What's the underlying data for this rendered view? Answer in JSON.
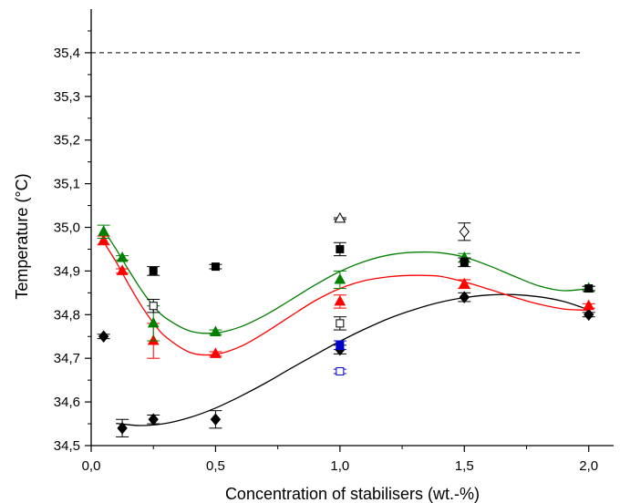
{
  "chart_data": {
    "type": "scatter",
    "xlabel": "Concentration of stabilisers (wt.-%)",
    "ylabel": "Temperature (°C)",
    "xlim": [
      0.0,
      2.1
    ],
    "ylim": [
      34.5,
      35.5
    ],
    "x_ticks": [
      "0,0",
      "0,5",
      "1,0",
      "1,5",
      "2,0"
    ],
    "y_ticks": [
      "34,5",
      "34,6",
      "34,7",
      "34,8",
      "34,9",
      "35,0",
      "35,1",
      "35,2",
      "35,3",
      "35,4"
    ],
    "grid": false,
    "legend": "none",
    "reference_line": {
      "y": 35.4,
      "style": "dashed",
      "color": "#000000"
    },
    "series": [
      {
        "color": "#000000",
        "marker": "diamond-filled",
        "points": [
          [
            0.05,
            34.75,
            0.005
          ],
          [
            0.125,
            34.54,
            0.02
          ],
          [
            0.25,
            34.56,
            0.01
          ],
          [
            0.5,
            34.56,
            0.02
          ],
          [
            1.0,
            34.72,
            0.01
          ],
          [
            1.5,
            34.84,
            0.01
          ],
          [
            2.0,
            34.8,
            0.005
          ]
        ],
        "fit": [
          [
            0.1,
            34.551
          ],
          [
            0.2,
            34.546
          ],
          [
            0.3,
            34.551
          ],
          [
            0.4,
            34.565
          ],
          [
            0.5,
            34.586
          ],
          [
            0.6,
            34.613
          ],
          [
            0.7,
            34.643
          ],
          [
            0.8,
            34.676
          ],
          [
            0.9,
            34.708
          ],
          [
            1.0,
            34.739
          ],
          [
            1.1,
            34.767
          ],
          [
            1.2,
            34.792
          ],
          [
            1.3,
            34.812
          ],
          [
            1.4,
            34.828
          ],
          [
            1.5,
            34.839
          ],
          [
            1.6,
            34.845
          ],
          [
            1.7,
            34.846
          ],
          [
            1.8,
            34.841
          ],
          [
            1.9,
            34.83
          ],
          [
            2.0,
            34.811
          ]
        ]
      },
      {
        "color": "#ff0000",
        "marker": "triangle-filled",
        "points": [
          [
            0.05,
            34.97,
            0.01
          ],
          [
            0.125,
            34.9,
            0.005
          ],
          [
            0.25,
            34.74,
            0.04
          ],
          [
            0.5,
            34.71,
            0.005
          ],
          [
            1.0,
            34.83,
            0.015
          ],
          [
            1.5,
            34.87,
            0.01
          ],
          [
            2.0,
            34.82,
            0.005
          ]
        ],
        "fit": [
          [
            0.05,
            34.967
          ],
          [
            0.1,
            34.921
          ],
          [
            0.15,
            34.87
          ],
          [
            0.2,
            34.822
          ],
          [
            0.25,
            34.781
          ],
          [
            0.3,
            34.749
          ],
          [
            0.4,
            34.713
          ],
          [
            0.5,
            34.709
          ],
          [
            0.6,
            34.727
          ],
          [
            0.7,
            34.759
          ],
          [
            0.8,
            34.796
          ],
          [
            0.9,
            34.832
          ],
          [
            1.0,
            34.86
          ],
          [
            1.1,
            34.878
          ],
          [
            1.2,
            34.887
          ],
          [
            1.3,
            34.89
          ],
          [
            1.4,
            34.888
          ],
          [
            1.5,
            34.875
          ],
          [
            1.6,
            34.858
          ],
          [
            1.7,
            34.84
          ],
          [
            1.8,
            34.824
          ],
          [
            1.9,
            34.813
          ],
          [
            2.0,
            34.81
          ]
        ]
      },
      {
        "color": "#008000",
        "marker": "triangle-filled",
        "points": [
          [
            0.05,
            34.99,
            0.015
          ],
          [
            0.125,
            34.93,
            0.005
          ],
          [
            0.25,
            34.78,
            0.04
          ],
          [
            0.5,
            34.76,
            0.005
          ],
          [
            1.0,
            34.88,
            0.02
          ],
          [
            1.5,
            34.93,
            0.01
          ],
          [
            2.0,
            34.86,
            0.005
          ]
        ],
        "fit": [
          [
            0.05,
            34.994
          ],
          [
            0.1,
            34.95
          ],
          [
            0.15,
            34.903
          ],
          [
            0.2,
            34.858
          ],
          [
            0.25,
            34.82
          ],
          [
            0.3,
            34.792
          ],
          [
            0.4,
            34.762
          ],
          [
            0.5,
            34.758
          ],
          [
            0.6,
            34.772
          ],
          [
            0.7,
            34.799
          ],
          [
            0.8,
            34.833
          ],
          [
            0.9,
            34.868
          ],
          [
            1.0,
            34.899
          ],
          [
            1.1,
            34.922
          ],
          [
            1.2,
            34.937
          ],
          [
            1.3,
            34.943
          ],
          [
            1.4,
            34.942
          ],
          [
            1.5,
            34.932
          ],
          [
            1.6,
            34.912
          ],
          [
            1.7,
            34.888
          ],
          [
            1.8,
            34.866
          ],
          [
            1.9,
            34.855
          ],
          [
            2.0,
            34.86
          ]
        ]
      },
      {
        "color": "#000000",
        "marker": "square-filled",
        "points": [
          [
            0.25,
            34.9,
            0.01
          ],
          [
            0.5,
            34.91,
            0.005
          ],
          [
            1.0,
            34.95,
            0.015
          ],
          [
            1.5,
            34.92,
            0.01
          ],
          [
            2.0,
            34.86,
            0.005
          ]
        ]
      },
      {
        "color": "#000000",
        "marker": "square-open",
        "points": [
          [
            0.25,
            34.82,
            0.015
          ],
          [
            1.0,
            34.78,
            0.015
          ]
        ]
      },
      {
        "color": "#0000cc",
        "marker": "square-filled",
        "points": [
          [
            1.0,
            34.73,
            0.01
          ]
        ]
      },
      {
        "color": "#0000cc",
        "marker": "square-open",
        "points": [
          [
            1.0,
            34.67,
            0.005
          ]
        ]
      },
      {
        "color": "#000000",
        "marker": "triangle-open",
        "points": [
          [
            1.0,
            35.02,
            0.002
          ]
        ]
      },
      {
        "color": "#000000",
        "marker": "diamond-open",
        "points": [
          [
            1.5,
            34.99,
            0.02
          ]
        ]
      }
    ]
  }
}
